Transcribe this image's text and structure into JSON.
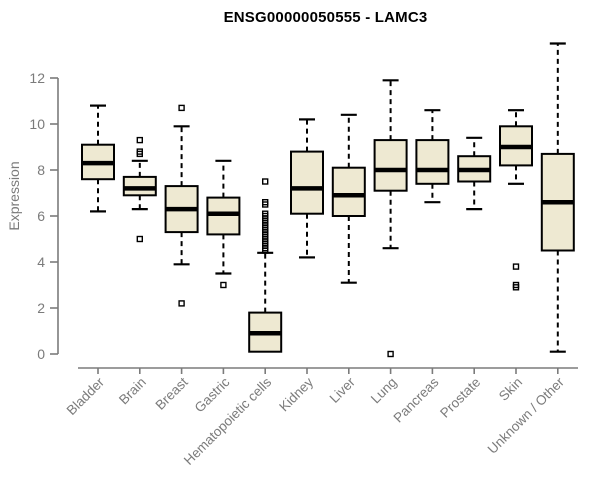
{
  "chart_data": {
    "type": "boxplot",
    "title": "ENSG00000050555 - LAMC3",
    "ylabel": "Expression",
    "xlabel": "",
    "ylim": [
      0,
      12
    ],
    "ymax_data": 13.5,
    "yticks": [
      0,
      2,
      4,
      6,
      8,
      10,
      12
    ],
    "grid": false,
    "legend": "none",
    "colors": {
      "box_fill": "#EEE9D2",
      "box_border": "#000000",
      "median": "#000000",
      "axis": "#7b7b7b",
      "title": "#000000",
      "background": "#ffffff"
    },
    "categories": [
      "Bladder",
      "Brain",
      "Breast",
      "Gastric",
      "Hematopoietic cells",
      "Kidney",
      "Liver",
      "Lung",
      "Pancreas",
      "Prostate",
      "Skin",
      "Unknown / Other"
    ],
    "boxes": [
      {
        "category": "Bladder",
        "whisker_low": 6.2,
        "q1": 7.6,
        "median": 8.3,
        "q3": 9.1,
        "whisker_high": 10.8,
        "outliers": []
      },
      {
        "category": "Brain",
        "whisker_low": 6.3,
        "q1": 6.9,
        "median": 7.2,
        "q3": 7.7,
        "whisker_high": 8.4,
        "outliers": [
          9.3,
          8.8,
          8.7,
          5.0
        ]
      },
      {
        "category": "Breast",
        "whisker_low": 3.9,
        "q1": 5.3,
        "median": 6.3,
        "q3": 7.3,
        "whisker_high": 9.9,
        "outliers": [
          10.7,
          2.2
        ]
      },
      {
        "category": "Gastric",
        "whisker_low": 3.5,
        "q1": 5.2,
        "median": 6.1,
        "q3": 6.8,
        "whisker_high": 8.4,
        "outliers": [
          3.0
        ]
      },
      {
        "category": "Hematopoietic cells",
        "whisker_low": 0.1,
        "q1": 0.1,
        "median": 0.9,
        "q3": 1.8,
        "whisker_high": 4.4,
        "outliers": [
          7.5,
          6.6,
          6.5,
          6.1,
          6.0,
          5.9,
          5.8,
          5.7,
          5.6,
          5.5,
          5.4,
          5.3,
          5.2,
          5.1,
          5.0,
          4.9,
          4.8,
          4.7,
          4.6,
          4.5
        ]
      },
      {
        "category": "Kidney",
        "whisker_low": 4.2,
        "q1": 6.1,
        "median": 7.2,
        "q3": 8.8,
        "whisker_high": 10.2,
        "outliers": []
      },
      {
        "category": "Liver",
        "whisker_low": 3.1,
        "q1": 6.0,
        "median": 6.9,
        "q3": 8.1,
        "whisker_high": 10.4,
        "outliers": []
      },
      {
        "category": "Lung",
        "whisker_low": 4.6,
        "q1": 7.1,
        "median": 8.0,
        "q3": 9.3,
        "whisker_high": 11.9,
        "outliers": [
          0.0
        ]
      },
      {
        "category": "Pancreas",
        "whisker_low": 6.6,
        "q1": 7.4,
        "median": 8.0,
        "q3": 9.3,
        "whisker_high": 10.6,
        "outliers": []
      },
      {
        "category": "Prostate",
        "whisker_low": 6.3,
        "q1": 7.5,
        "median": 8.0,
        "q3": 8.6,
        "whisker_high": 9.4,
        "outliers": []
      },
      {
        "category": "Skin",
        "whisker_low": 7.4,
        "q1": 8.2,
        "median": 9.0,
        "q3": 9.9,
        "whisker_high": 10.6,
        "outliers": [
          3.8,
          3.0,
          2.9
        ]
      },
      {
        "category": "Unknown / Other",
        "whisker_low": 0.1,
        "q1": 4.5,
        "median": 6.6,
        "q3": 8.7,
        "whisker_high": 13.5,
        "outliers": []
      }
    ]
  }
}
